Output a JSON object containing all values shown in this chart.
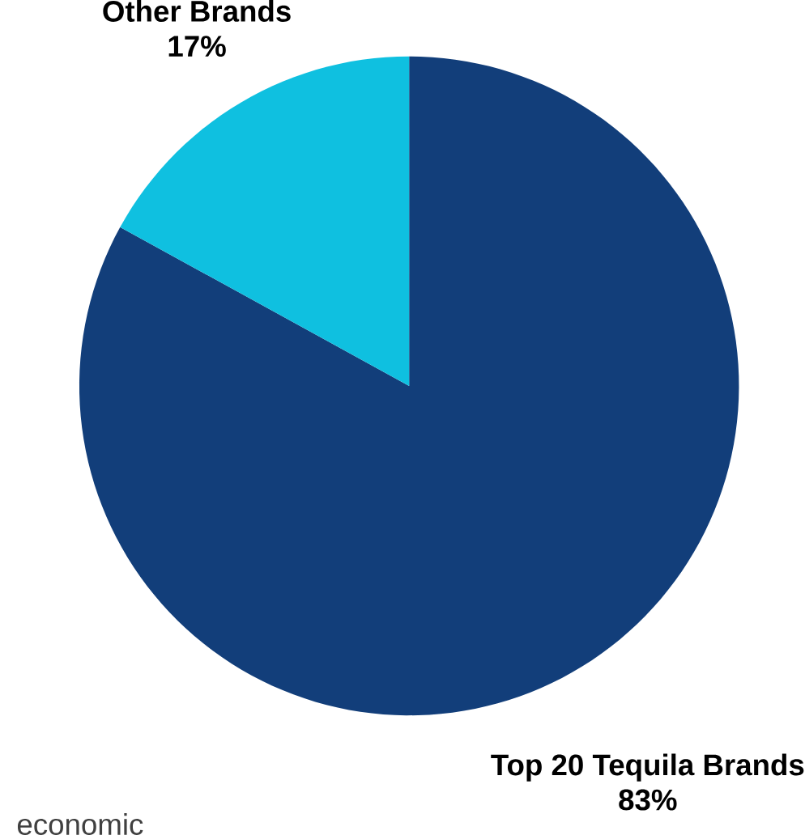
{
  "chart_data": {
    "type": "pie",
    "categories": [
      "Top 20 Tequila Brands",
      "Other Brands"
    ],
    "values": [
      83,
      17
    ],
    "colors": [
      "#123e7a",
      "#0fc0e0"
    ],
    "value_labels": [
      "83%",
      "17%"
    ],
    "annotations": [
      "economic"
    ]
  }
}
